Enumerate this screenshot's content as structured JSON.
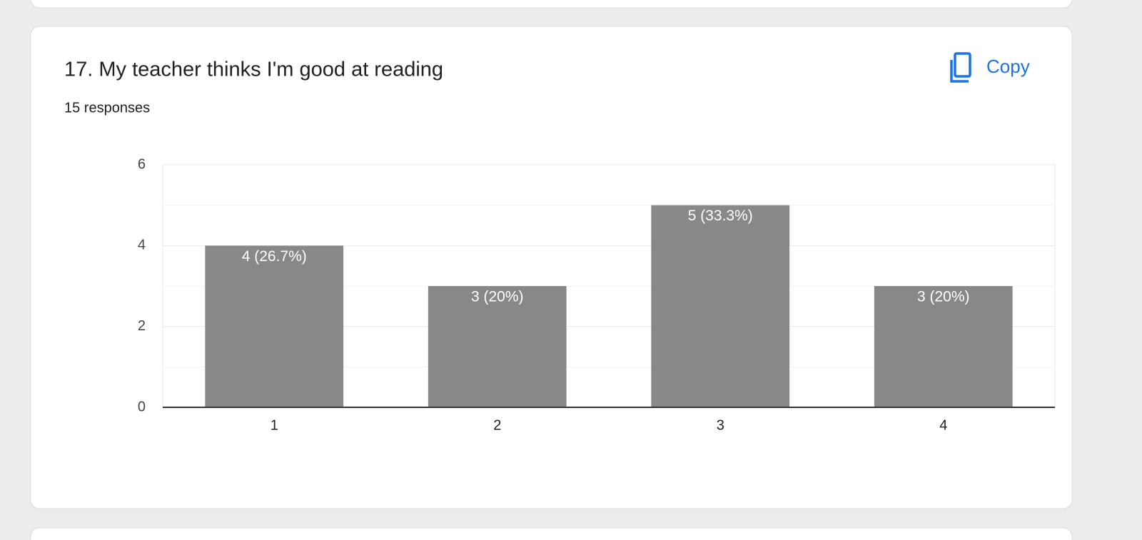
{
  "question": {
    "title": "17. My teacher thinks I'm good at reading",
    "responses": "15 responses"
  },
  "copy_button": "Copy",
  "chart_data": {
    "type": "bar",
    "categories": [
      "1",
      "2",
      "3",
      "4"
    ],
    "values": [
      4,
      3,
      5,
      3
    ],
    "value_labels": [
      "4 (26.7%)",
      "3 (20%)",
      "5 (33.3%)",
      "3 (20%)"
    ],
    "color": "#888888",
    "ylim": [
      0,
      6
    ],
    "yticks": [
      0,
      2,
      4,
      6
    ],
    "grid": true
  }
}
